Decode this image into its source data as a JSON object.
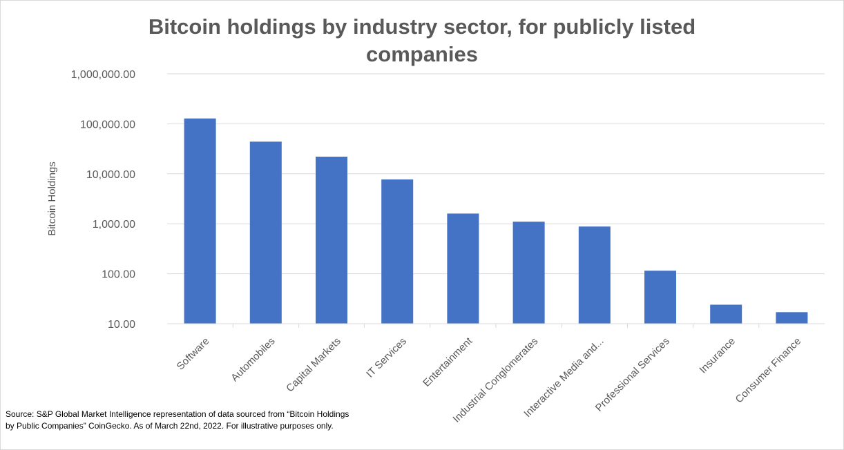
{
  "chart_data": {
    "type": "bar",
    "title": "Bitcoin holdings by industry sector, for publicly listed companies",
    "xlabel": "",
    "ylabel": "Bitcoin Holdings",
    "yscale": "log",
    "ylim": [
      10,
      1000000
    ],
    "yticks": [
      10,
      100,
      1000,
      10000,
      100000,
      1000000
    ],
    "ytick_labels": [
      "10.00",
      "100.00",
      "1,000.00",
      "10,000.00",
      "100,000.00",
      "1,000,000.00"
    ],
    "grid": true,
    "legend": "none",
    "bar_color": "#4472c4",
    "categories": [
      "Software",
      "Automobiles",
      "Capital Markets",
      "IT Services",
      "Entertainment",
      "Industrial Conglomerates",
      "Interactive Media and...",
      "Professional Services",
      "Insurance",
      "Consumer Finance"
    ],
    "values": [
      128000,
      44000,
      22000,
      7700,
      1600,
      1100,
      880,
      115,
      24,
      17
    ]
  },
  "source_note": "Source: S&P Global Market Intelligence representation of data sourced from “Bitcoin Holdings by Public Companies” CoinGecko. As of March 22nd, 2022. For illustrative purposes only."
}
